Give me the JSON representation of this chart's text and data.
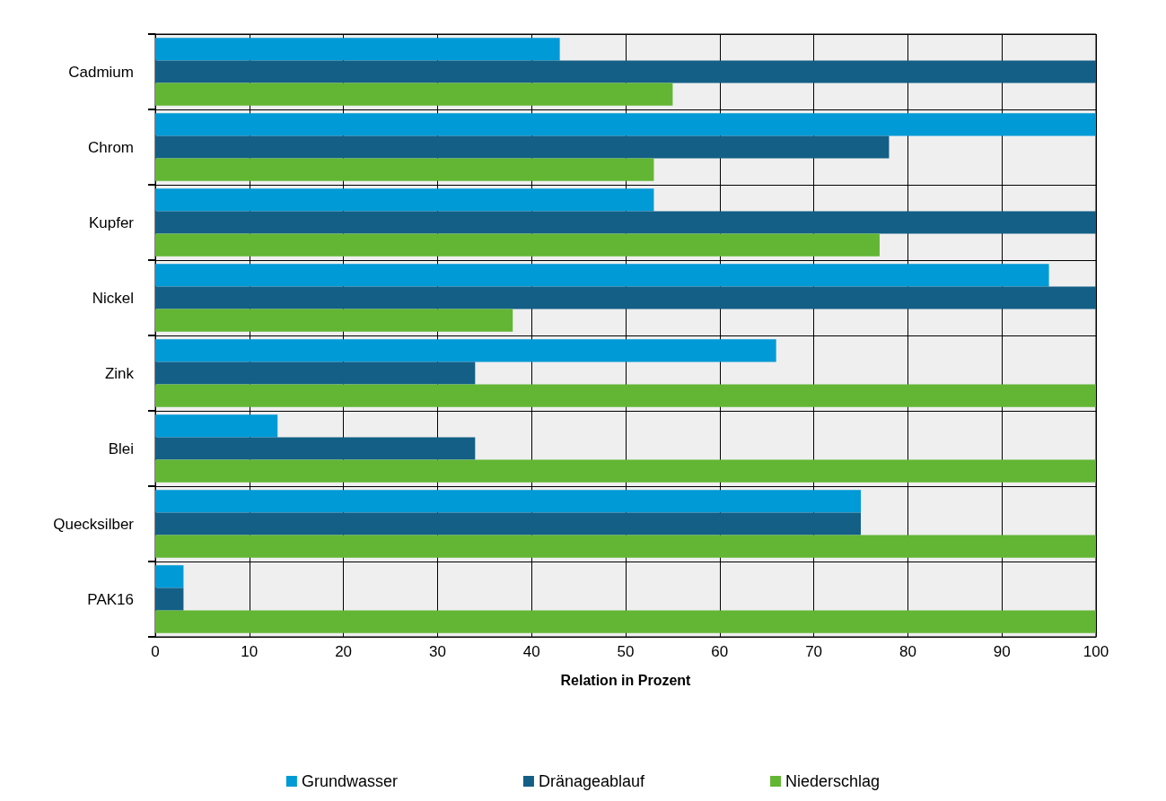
{
  "chart_data": {
    "type": "bar",
    "orientation": "horizontal",
    "xlabel": "Relation in Prozent",
    "categories": [
      "Cadmium",
      "Chrom",
      "Kupfer",
      "Nickel",
      "Zink",
      "Blei",
      "Quecksilber",
      "PAK16"
    ],
    "series": [
      {
        "name": "Grundwasser",
        "color": "#009ad6",
        "values": [
          43,
          100,
          53,
          95,
          66,
          13,
          75,
          3
        ]
      },
      {
        "name": "Dränageablauf",
        "color": "#135f86",
        "values": [
          100,
          78,
          100,
          100,
          34,
          34,
          75,
          3
        ]
      },
      {
        "name": "Niederschlag",
        "color": "#62b634",
        "values": [
          55,
          53,
          77,
          38,
          100,
          100,
          100,
          100
        ]
      }
    ],
    "xlim": [
      0,
      100
    ],
    "xticks": [
      0,
      10,
      20,
      30,
      40,
      50,
      60,
      70,
      80,
      90,
      100
    ],
    "grid": true,
    "legend": "bottom"
  }
}
